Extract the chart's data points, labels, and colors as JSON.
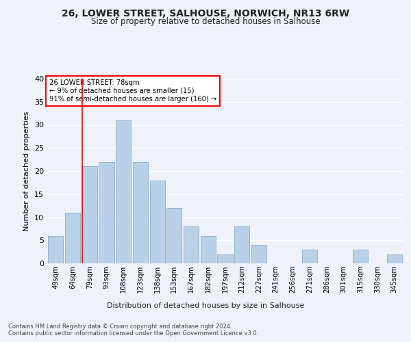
{
  "title1": "26, LOWER STREET, SALHOUSE, NORWICH, NR13 6RW",
  "title2": "Size of property relative to detached houses in Salhouse",
  "xlabel": "Distribution of detached houses by size in Salhouse",
  "ylabel": "Number of detached properties",
  "categories": [
    "49sqm",
    "64sqm",
    "79sqm",
    "93sqm",
    "108sqm",
    "123sqm",
    "138sqm",
    "153sqm",
    "167sqm",
    "182sqm",
    "197sqm",
    "212sqm",
    "227sqm",
    "241sqm",
    "256sqm",
    "271sqm",
    "286sqm",
    "301sqm",
    "315sqm",
    "330sqm",
    "345sqm"
  ],
  "values": [
    6,
    11,
    21,
    22,
    31,
    22,
    18,
    12,
    8,
    6,
    2,
    8,
    4,
    0,
    0,
    3,
    0,
    0,
    3,
    0,
    2
  ],
  "bar_color": "#b8d0e8",
  "bar_edge_color": "#8aaec8",
  "annotation_text_line1": "26 LOWER STREET: 78sqm",
  "annotation_text_line2": "← 9% of detached houses are smaller (15)",
  "annotation_text_line3": "91% of semi-detached houses are larger (160) →",
  "annotation_box_color": "white",
  "annotation_box_edge_color": "red",
  "vline_color": "red",
  "vline_bin": 2,
  "ylim": [
    0,
    40
  ],
  "yticks": [
    0,
    5,
    10,
    15,
    20,
    25,
    30,
    35,
    40
  ],
  "footer1": "Contains HM Land Registry data © Crown copyright and database right 2024.",
  "footer2": "Contains public sector information licensed under the Open Government Licence v3.0.",
  "bg_color": "#eef2f8",
  "grid_color": "#ffffff"
}
